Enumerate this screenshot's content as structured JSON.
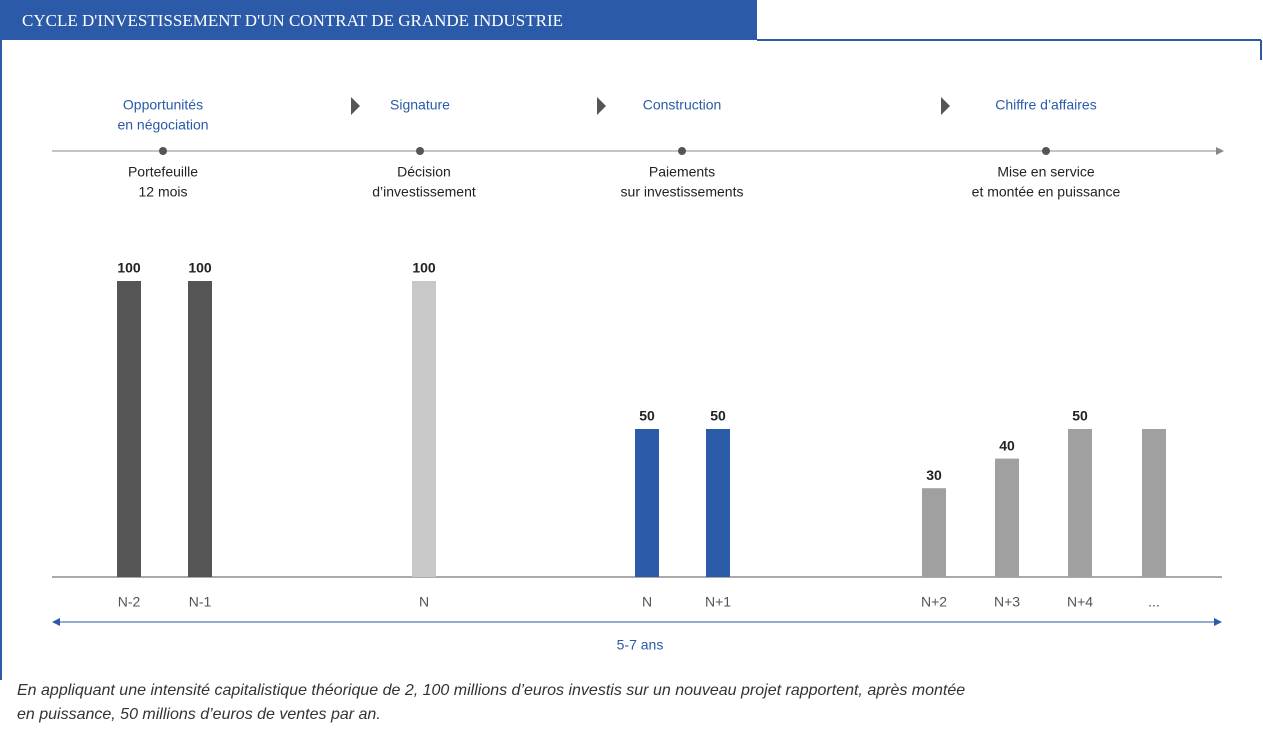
{
  "chart_data": {
    "type": "bar",
    "title": "CYCLE D'INVESTISSEMENT D'UN CONTRAT DE GRANDE INDUSTRIE",
    "stages": [
      {
        "title": [
          "Opportunités",
          "en négociation"
        ],
        "caption": [
          "Portefeuille",
          "12 mois"
        ]
      },
      {
        "title": [
          "Signature"
        ],
        "caption": [
          "Décision",
          "d’investissement"
        ]
      },
      {
        "title": [
          "Construction"
        ],
        "caption": [
          "Paiements",
          "sur investissements"
        ]
      },
      {
        "title": [
          "Chiffre d’affaires"
        ],
        "caption": [
          "Mise en service",
          "et montée en puissance"
        ]
      }
    ],
    "categories": [
      "N-2",
      "N-1",
      "N",
      "N",
      "N+1",
      "N+2",
      "N+3",
      "N+4",
      "..."
    ],
    "values": [
      100,
      100,
      100,
      50,
      50,
      30,
      40,
      50,
      50
    ],
    "colors": [
      "#555555",
      "#555555",
      "#c8c8c8",
      "#2a5aa8",
      "#2a5aa8",
      "#a0a0a0",
      "#a0a0a0",
      "#a0a0a0",
      "#a0a0a0"
    ],
    "show_values": [
      true,
      true,
      true,
      true,
      true,
      true,
      true,
      true,
      false
    ],
    "range_label": "5-7 ans",
    "note": [
      "En appliquant une intensité capitalistique théorique de 2, 100 millions d’euros investis sur un nouveau projet rapportent, après montée",
      "en puissance, 50 millions d’euros de ventes par an."
    ]
  }
}
